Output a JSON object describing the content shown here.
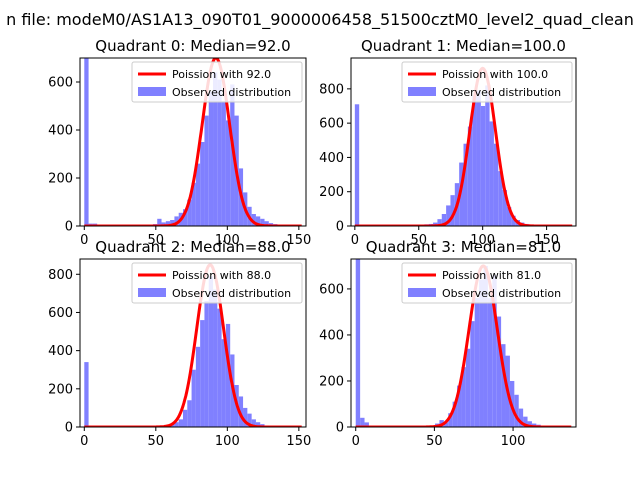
{
  "figure": {
    "suptitle": "n file: modeM0/AS1A13_090T01_9000006458_51500cztM0_level2_quad_clean"
  },
  "colors": {
    "fit_line": "#ff0000",
    "hist_fill": "#8080ff",
    "axes": "#000000"
  },
  "chart_data": [
    {
      "type": "bar",
      "title": "Quadrant 0: Median=92.0",
      "xlim": [
        -3,
        155
      ],
      "ylim": [
        0,
        700
      ],
      "xticks": [
        0,
        50,
        100,
        150
      ],
      "yticks": [
        0,
        200,
        400,
        600
      ],
      "legend": {
        "position": "top-right",
        "entries": [
          "Poission with 92.0",
          "Observed distribution"
        ]
      },
      "series": [
        {
          "name": "Poission with 92.0",
          "kind": "line",
          "mean": 92.0,
          "peak": 700,
          "color": "#ff0000"
        },
        {
          "name": "Observed distribution",
          "kind": "histogram",
          "bin_width": 3,
          "color": "#8080ff",
          "bins": [
            [
              0,
              700
            ],
            [
              3,
              10
            ],
            [
              6,
              10
            ],
            [
              9,
              3
            ],
            [
              12,
              3
            ],
            [
              15,
              2
            ],
            [
              18,
              2
            ],
            [
              21,
              2
            ],
            [
              24,
              2
            ],
            [
              27,
              2
            ],
            [
              30,
              2
            ],
            [
              33,
              2
            ],
            [
              36,
              2
            ],
            [
              39,
              3
            ],
            [
              42,
              3
            ],
            [
              45,
              4
            ],
            [
              48,
              8
            ],
            [
              51,
              30
            ],
            [
              54,
              15
            ],
            [
              57,
              20
            ],
            [
              60,
              25
            ],
            [
              63,
              40
            ],
            [
              66,
              55
            ],
            [
              69,
              70
            ],
            [
              72,
              110
            ],
            [
              75,
              180
            ],
            [
              78,
              260
            ],
            [
              81,
              350
            ],
            [
              84,
              460
            ],
            [
              87,
              560
            ],
            [
              90,
              640
            ],
            [
              93,
              610
            ],
            [
              96,
              520
            ],
            [
              99,
              440
            ],
            [
              102,
              590
            ],
            [
              105,
              460
            ],
            [
              108,
              240
            ],
            [
              111,
              140
            ],
            [
              114,
              80
            ],
            [
              117,
              50
            ],
            [
              120,
              40
            ],
            [
              123,
              30
            ],
            [
              126,
              20
            ],
            [
              129,
              12
            ],
            [
              132,
              8
            ],
            [
              135,
              5
            ],
            [
              138,
              4
            ],
            [
              141,
              3
            ],
            [
              144,
              3
            ],
            [
              147,
              2
            ],
            [
              150,
              2
            ]
          ]
        }
      ]
    },
    {
      "type": "bar",
      "title": "Quadrant 1: Median=100.0",
      "xlim": [
        -3,
        173
      ],
      "ylim": [
        0,
        980
      ],
      "xticks": [
        0,
        50,
        100,
        150
      ],
      "yticks": [
        0,
        200,
        400,
        600,
        800
      ],
      "legend": {
        "position": "top-right",
        "entries": [
          "Poission with 100.0",
          "Observed distribution"
        ]
      },
      "series": [
        {
          "name": "Poission with 100.0",
          "kind": "line",
          "mean": 100.0,
          "peak": 920,
          "color": "#ff0000"
        },
        {
          "name": "Observed distribution",
          "kind": "histogram",
          "bin_width": 3.4,
          "color": "#8080ff",
          "bins": [
            [
              0,
              710
            ],
            [
              3.4,
              2
            ],
            [
              6.8,
              2
            ],
            [
              10.2,
              2
            ],
            [
              13.6,
              2
            ],
            [
              17,
              2
            ],
            [
              20.4,
              2
            ],
            [
              23.8,
              2
            ],
            [
              27.2,
              2
            ],
            [
              30.6,
              2
            ],
            [
              34,
              2
            ],
            [
              37.4,
              2
            ],
            [
              40.8,
              2
            ],
            [
              44.2,
              2
            ],
            [
              47.6,
              3
            ],
            [
              51,
              8
            ],
            [
              54.4,
              10
            ],
            [
              57.8,
              12
            ],
            [
              61.2,
              20
            ],
            [
              64.6,
              40
            ],
            [
              68,
              70
            ],
            [
              71.4,
              120
            ],
            [
              74.8,
              180
            ],
            [
              78.2,
              250
            ],
            [
              81.6,
              370
            ],
            [
              85,
              480
            ],
            [
              88.4,
              580
            ],
            [
              91.8,
              760
            ],
            [
              95.2,
              790
            ],
            [
              98.6,
              700
            ],
            [
              102,
              820
            ],
            [
              105.4,
              610
            ],
            [
              108.8,
              480
            ],
            [
              112.2,
              320
            ],
            [
              115.6,
              210
            ],
            [
              119,
              110
            ],
            [
              122.4,
              60
            ],
            [
              125.8,
              35
            ],
            [
              129.2,
              20
            ],
            [
              132.6,
              12
            ],
            [
              136,
              8
            ],
            [
              139.4,
              6
            ],
            [
              142.8,
              4
            ],
            [
              146.2,
              3
            ],
            [
              149.6,
              3
            ],
            [
              153,
              2
            ],
            [
              156.4,
              2
            ],
            [
              159.8,
              2
            ],
            [
              163.2,
              2
            ],
            [
              166.6,
              2
            ]
          ]
        }
      ]
    },
    {
      "type": "bar",
      "title": "Quadrant 2: Median=88.0",
      "xlim": [
        -3,
        155
      ],
      "ylim": [
        0,
        880
      ],
      "xticks": [
        0,
        50,
        100,
        150
      ],
      "yticks": [
        0,
        200,
        400,
        600,
        800
      ],
      "legend": {
        "position": "top-right",
        "entries": [
          "Poission with 88.0",
          "Observed distribution"
        ]
      },
      "series": [
        {
          "name": "Poission with 88.0",
          "kind": "line",
          "mean": 88.0,
          "peak": 850,
          "color": "#ff0000"
        },
        {
          "name": "Observed distribution",
          "kind": "histogram",
          "bin_width": 3,
          "color": "#8080ff",
          "bins": [
            [
              0,
              340
            ],
            [
              3,
              2
            ],
            [
              6,
              2
            ],
            [
              9,
              2
            ],
            [
              12,
              2
            ],
            [
              15,
              2
            ],
            [
              18,
              2
            ],
            [
              21,
              2
            ],
            [
              24,
              2
            ],
            [
              27,
              2
            ],
            [
              30,
              2
            ],
            [
              33,
              2
            ],
            [
              36,
              2
            ],
            [
              39,
              2
            ],
            [
              42,
              2
            ],
            [
              45,
              3
            ],
            [
              48,
              4
            ],
            [
              51,
              5
            ],
            [
              54,
              8
            ],
            [
              57,
              10
            ],
            [
              60,
              15
            ],
            [
              63,
              25
            ],
            [
              66,
              40
            ],
            [
              69,
              90
            ],
            [
              72,
              140
            ],
            [
              75,
              300
            ],
            [
              78,
              420
            ],
            [
              81,
              560
            ],
            [
              84,
              660
            ],
            [
              87,
              790
            ],
            [
              90,
              720
            ],
            [
              93,
              620
            ],
            [
              96,
              460
            ],
            [
              99,
              540
            ],
            [
              102,
              380
            ],
            [
              105,
              220
            ],
            [
              108,
              160
            ],
            [
              111,
              100
            ],
            [
              114,
              70
            ],
            [
              117,
              40
            ],
            [
              120,
              25
            ],
            [
              123,
              15
            ],
            [
              126,
              8
            ],
            [
              129,
              6
            ],
            [
              132,
              4
            ],
            [
              135,
              3
            ],
            [
              138,
              2
            ],
            [
              141,
              2
            ],
            [
              144,
              2
            ],
            [
              147,
              2
            ],
            [
              150,
              2
            ]
          ]
        }
      ]
    },
    {
      "type": "bar",
      "title": "Quadrant 3: Median=81.0",
      "xlim": [
        -3,
        140
      ],
      "ylim": [
        0,
        730
      ],
      "xticks": [
        0,
        50,
        100
      ],
      "yticks": [
        0,
        200,
        400,
        600
      ],
      "legend": {
        "position": "top-right",
        "entries": [
          "Poission with 81.0",
          "Observed distribution"
        ]
      },
      "series": [
        {
          "name": "Poission with 81.0",
          "kind": "line",
          "mean": 81.0,
          "peak": 700,
          "color": "#ff0000"
        },
        {
          "name": "Observed distribution",
          "kind": "histogram",
          "bin_width": 2.8,
          "color": "#8080ff",
          "bins": [
            [
              0,
              730
            ],
            [
              2.8,
              40
            ],
            [
              5.6,
              20
            ],
            [
              8.4,
              3
            ],
            [
              11.2,
              2
            ],
            [
              14,
              2
            ],
            [
              16.8,
              2
            ],
            [
              19.6,
              2
            ],
            [
              22.4,
              2
            ],
            [
              25.2,
              2
            ],
            [
              28,
              2
            ],
            [
              30.8,
              2
            ],
            [
              33.6,
              2
            ],
            [
              36.4,
              2
            ],
            [
              39.2,
              2
            ],
            [
              42,
              3
            ],
            [
              44.8,
              4
            ],
            [
              47.6,
              6
            ],
            [
              50.4,
              15
            ],
            [
              53.2,
              30
            ],
            [
              56,
              20
            ],
            [
              58.8,
              60
            ],
            [
              61.6,
              110
            ],
            [
              64.4,
              180
            ],
            [
              67.2,
              260
            ],
            [
              70,
              340
            ],
            [
              72.8,
              460
            ],
            [
              75.6,
              560
            ],
            [
              78.4,
              640
            ],
            [
              81.2,
              700
            ],
            [
              84,
              560
            ],
            [
              86.8,
              660
            ],
            [
              89.6,
              480
            ],
            [
              92.4,
              360
            ],
            [
              95.2,
              310
            ],
            [
              98,
              200
            ],
            [
              100.8,
              140
            ],
            [
              103.6,
              80
            ],
            [
              106.4,
              45
            ],
            [
              109.2,
              25
            ],
            [
              112,
              15
            ],
            [
              114.8,
              10
            ],
            [
              117.6,
              6
            ],
            [
              120.4,
              4
            ],
            [
              123.2,
              3
            ],
            [
              126,
              2
            ],
            [
              128.8,
              2
            ],
            [
              131.6,
              2
            ],
            [
              134.4,
              2
            ]
          ]
        }
      ]
    }
  ]
}
